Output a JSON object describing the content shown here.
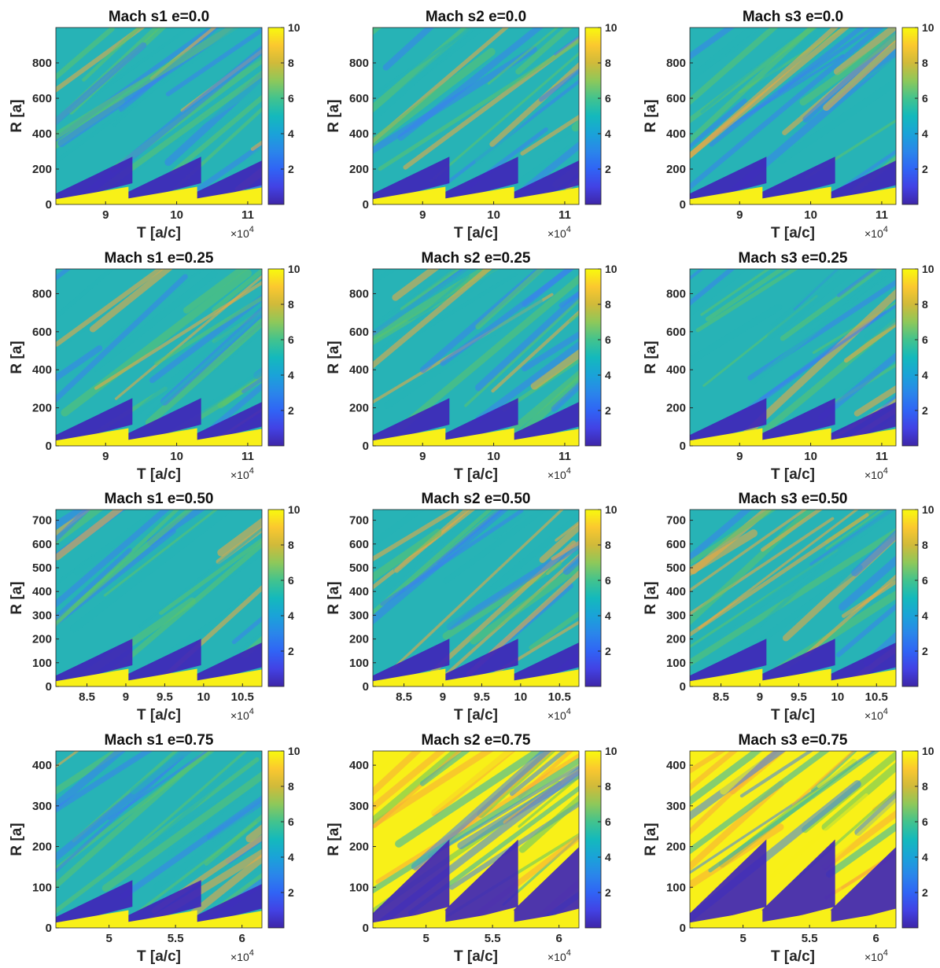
{
  "chart_data": [
    {
      "type": "heatmap",
      "title": "Mach s1  e=0.0",
      "xlabel": "T [a/c]",
      "ylabel": "R [a]",
      "x_multiplier": "×10^4",
      "xlim": [
        8.3,
        11.2
      ],
      "ylim": [
        0,
        1000
      ],
      "xticks": [
        9,
        10,
        11
      ],
      "yticks": [
        0,
        200,
        400,
        600,
        800
      ],
      "colorbar": {
        "range": [
          0,
          10
        ],
        "ticks": [
          2,
          4,
          6,
          8,
          10
        ]
      },
      "row": 0,
      "col": 0,
      "variant": "low"
    },
    {
      "type": "heatmap",
      "title": "Mach s2  e=0.0",
      "xlabel": "T [a/c]",
      "ylabel": "R [a]",
      "x_multiplier": "×10^4",
      "xlim": [
        8.3,
        11.2
      ],
      "ylim": [
        0,
        1000
      ],
      "xticks": [
        9,
        10,
        11
      ],
      "yticks": [
        0,
        200,
        400,
        600,
        800
      ],
      "colorbar": {
        "range": [
          0,
          10
        ],
        "ticks": [
          2,
          4,
          6,
          8,
          10
        ]
      },
      "row": 0,
      "col": 1,
      "variant": "low"
    },
    {
      "type": "heatmap",
      "title": "Mach s3  e=0.0",
      "xlabel": "T [a/c]",
      "ylabel": "R [a]",
      "x_multiplier": "×10^4",
      "xlim": [
        8.3,
        11.2
      ],
      "ylim": [
        0,
        1000
      ],
      "xticks": [
        9,
        10,
        11
      ],
      "yticks": [
        0,
        200,
        400,
        600,
        800
      ],
      "colorbar": {
        "range": [
          0,
          10
        ],
        "ticks": [
          2,
          4,
          6,
          8,
          10
        ]
      },
      "row": 0,
      "col": 2,
      "variant": "low"
    },
    {
      "type": "heatmap",
      "title": "Mach s1  e=0.25",
      "xlabel": "T [a/c]",
      "ylabel": "R [a]",
      "x_multiplier": "×10^4",
      "xlim": [
        8.3,
        11.2
      ],
      "ylim": [
        0,
        930
      ],
      "xticks": [
        9,
        10,
        11
      ],
      "yticks": [
        0,
        200,
        400,
        600,
        800
      ],
      "colorbar": {
        "range": [
          0,
          10
        ],
        "ticks": [
          2,
          4,
          6,
          8,
          10
        ]
      },
      "row": 1,
      "col": 0,
      "variant": "low"
    },
    {
      "type": "heatmap",
      "title": "Mach s2  e=0.25",
      "xlabel": "T [a/c]",
      "ylabel": "R [a]",
      "x_multiplier": "×10^4",
      "xlim": [
        8.3,
        11.2
      ],
      "ylim": [
        0,
        930
      ],
      "xticks": [
        9,
        10,
        11
      ],
      "yticks": [
        0,
        200,
        400,
        600,
        800
      ],
      "colorbar": {
        "range": [
          0,
          10
        ],
        "ticks": [
          2,
          4,
          6,
          8,
          10
        ]
      },
      "row": 1,
      "col": 1,
      "variant": "low"
    },
    {
      "type": "heatmap",
      "title": "Mach s3  e=0.25",
      "xlabel": "T [a/c]",
      "ylabel": "R [a]",
      "x_multiplier": "×10^4",
      "xlim": [
        8.3,
        11.2
      ],
      "ylim": [
        0,
        930
      ],
      "xticks": [
        9,
        10,
        11
      ],
      "yticks": [
        0,
        200,
        400,
        600,
        800
      ],
      "colorbar": {
        "range": [
          0,
          10
        ],
        "ticks": [
          2,
          4,
          6,
          8,
          10
        ]
      },
      "row": 1,
      "col": 2,
      "variant": "low"
    },
    {
      "type": "heatmap",
      "title": "Mach s1  e=0.50",
      "xlabel": "T [a/c]",
      "ylabel": "R [a]",
      "x_multiplier": "×10^4",
      "xlim": [
        8.1,
        10.75
      ],
      "ylim": [
        0,
        745
      ],
      "xticks": [
        8.5,
        9,
        9.5,
        10,
        10.5
      ],
      "yticks": [
        0,
        100,
        200,
        300,
        400,
        500,
        600,
        700
      ],
      "colorbar": {
        "range": [
          0,
          10
        ],
        "ticks": [
          2,
          4,
          6,
          8,
          10
        ]
      },
      "row": 2,
      "col": 0,
      "variant": "low"
    },
    {
      "type": "heatmap",
      "title": "Mach s2  e=0.50",
      "xlabel": "T [a/c]",
      "ylabel": "R [a]",
      "x_multiplier": "×10^4",
      "xlim": [
        8.1,
        10.75
      ],
      "ylim": [
        0,
        745
      ],
      "xticks": [
        8.5,
        9,
        9.5,
        10,
        10.5
      ],
      "yticks": [
        0,
        100,
        200,
        300,
        400,
        500,
        600,
        700
      ],
      "colorbar": {
        "range": [
          0,
          10
        ],
        "ticks": [
          2,
          4,
          6,
          8,
          10
        ]
      },
      "row": 2,
      "col": 1,
      "variant": "mid"
    },
    {
      "type": "heatmap",
      "title": "Mach s3  e=0.50",
      "xlabel": "T [a/c]",
      "ylabel": "R [a]",
      "x_multiplier": "×10^4",
      "xlim": [
        8.1,
        10.75
      ],
      "ylim": [
        0,
        745
      ],
      "xticks": [
        8.5,
        9,
        9.5,
        10,
        10.5
      ],
      "yticks": [
        0,
        100,
        200,
        300,
        400,
        500,
        600,
        700
      ],
      "colorbar": {
        "range": [
          0,
          10
        ],
        "ticks": [
          2,
          4,
          6,
          8,
          10
        ]
      },
      "row": 2,
      "col": 2,
      "variant": "mid"
    },
    {
      "type": "heatmap",
      "title": "Mach s1  e=0.75",
      "xlabel": "T [a/c]",
      "ylabel": "R [a]",
      "x_multiplier": "×10^4",
      "xlim": [
        4.6,
        6.15
      ],
      "ylim": [
        0,
        435
      ],
      "xticks": [
        5,
        5.5,
        6
      ],
      "yticks": [
        0,
        100,
        200,
        300,
        400
      ],
      "colorbar": {
        "range": [
          0,
          10
        ],
        "ticks": [
          2,
          4,
          6,
          8,
          10
        ]
      },
      "row": 3,
      "col": 0,
      "variant": "low"
    },
    {
      "type": "heatmap",
      "title": "Mach s2  e=0.75",
      "xlabel": "T [a/c]",
      "ylabel": "R [a]",
      "x_multiplier": "×10^4",
      "xlim": [
        4.6,
        6.15
      ],
      "ylim": [
        0,
        435
      ],
      "xticks": [
        5,
        5.5,
        6
      ],
      "yticks": [
        0,
        100,
        200,
        300,
        400
      ],
      "colorbar": {
        "range": [
          0,
          10
        ],
        "ticks": [
          2,
          4,
          6,
          8,
          10
        ]
      },
      "row": 3,
      "col": 1,
      "variant": "high"
    },
    {
      "type": "heatmap",
      "title": "Mach s3  e=0.75",
      "xlabel": "T [a/c]",
      "ylabel": "R [a]",
      "x_multiplier": "×10^4",
      "xlim": [
        4.6,
        6.15
      ],
      "ylim": [
        0,
        435
      ],
      "xticks": [
        5,
        5.5,
        6
      ],
      "yticks": [
        0,
        100,
        200,
        300,
        400
      ],
      "colorbar": {
        "range": [
          0,
          10
        ],
        "ticks": [
          2,
          4,
          6,
          8,
          10
        ]
      },
      "row": 3,
      "col": 2,
      "variant": "high"
    }
  ],
  "colormap": "parula",
  "colors": {
    "deep": "#3f26b8",
    "blue": "#3a7ff0",
    "teal": "#27b3b6",
    "green": "#5cc46a",
    "orange": "#f7a93b",
    "yellow": "#f8f018"
  }
}
